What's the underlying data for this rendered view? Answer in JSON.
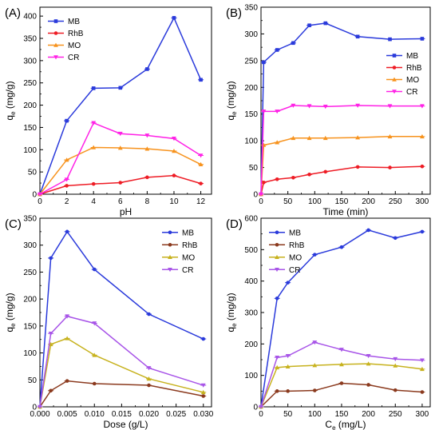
{
  "chart_data": [
    {
      "type": "line",
      "panel_label": "(A)",
      "xlabel": "pH",
      "ylabel_main": "q",
      "ylabel_sub": "e",
      "ylabel_unit": " (mg/g)",
      "xlim": [
        0,
        12.8
      ],
      "ylim": [
        0,
        420
      ],
      "xticks": [
        0,
        2,
        4,
        6,
        8,
        10,
        12
      ],
      "yticks": [
        0,
        50,
        100,
        150,
        200,
        250,
        300,
        350,
        400
      ],
      "xtick_labels": [
        "0",
        "2",
        "4",
        "6",
        "8",
        "10",
        "12"
      ],
      "ytick_labels": [
        "0",
        "50",
        "100",
        "150",
        "200",
        "250",
        "300",
        "350",
        "400"
      ],
      "legend_position": "top-left",
      "series": [
        {
          "name": "MB",
          "color": "#2a3adb",
          "marker": "square",
          "x": [
            0,
            2,
            4,
            6,
            8,
            10,
            12
          ],
          "y": [
            0,
            165,
            238,
            239,
            281,
            396,
            257
          ]
        },
        {
          "name": "RhB",
          "color": "#ee1c25",
          "marker": "circle",
          "x": [
            0,
            2,
            4,
            6,
            8,
            10,
            12
          ],
          "y": [
            0,
            19,
            23,
            26,
            38,
            42,
            24
          ]
        },
        {
          "name": "MO",
          "color": "#f7931e",
          "marker": "triangle",
          "x": [
            0,
            2,
            4,
            6,
            8,
            10,
            12
          ],
          "y": [
            0,
            77,
            105,
            104,
            102,
            97,
            67
          ]
        },
        {
          "name": "CR",
          "color": "#ff22e6",
          "marker": "triangle-down",
          "x": [
            0,
            2,
            4,
            6,
            8,
            10,
            12
          ],
          "y": [
            0,
            33,
            160,
            136,
            132,
            125,
            87
          ]
        }
      ]
    },
    {
      "type": "line",
      "panel_label": "(B)",
      "xlabel": "Time (min)",
      "ylabel_main": "q",
      "ylabel_sub": "e",
      "ylabel_unit": " (mg/g)",
      "xlim": [
        0,
        315
      ],
      "ylim": [
        0,
        350
      ],
      "xticks": [
        0,
        50,
        100,
        150,
        200,
        250,
        300
      ],
      "yticks": [
        0,
        50,
        100,
        150,
        200,
        250,
        300,
        350
      ],
      "xtick_labels": [
        "0",
        "50",
        "100",
        "150",
        "200",
        "250",
        "300"
      ],
      "ytick_labels": [
        "0",
        "50",
        "100",
        "150",
        "200",
        "250",
        "300",
        "350"
      ],
      "legend_position": "right",
      "series": [
        {
          "name": "MB",
          "color": "#2a3adb",
          "marker": "square",
          "x": [
            0,
            5,
            30,
            60,
            90,
            120,
            180,
            240,
            300
          ],
          "y": [
            0,
            247,
            270,
            283,
            316,
            320,
            295,
            290,
            291
          ]
        },
        {
          "name": "RhB",
          "color": "#ee1c25",
          "marker": "circle",
          "x": [
            0,
            5,
            30,
            60,
            90,
            120,
            180,
            240,
            300
          ],
          "y": [
            0,
            22,
            28,
            31,
            37,
            42,
            51,
            50,
            52
          ]
        },
        {
          "name": "MO",
          "color": "#f7931e",
          "marker": "triangle",
          "x": [
            0,
            5,
            30,
            60,
            90,
            120,
            180,
            240,
            300
          ],
          "y": [
            0,
            92,
            97,
            105,
            105,
            105,
            106,
            108,
            108
          ]
        },
        {
          "name": "CR",
          "color": "#ff22e6",
          "marker": "triangle-down",
          "x": [
            0,
            5,
            30,
            60,
            90,
            120,
            180,
            240,
            300
          ],
          "y": [
            0,
            155,
            155,
            166,
            165,
            164,
            166,
            165,
            165
          ]
        }
      ]
    },
    {
      "type": "line",
      "panel_label": "(C)",
      "xlabel": "Dose (g/L)",
      "ylabel_main": "q",
      "ylabel_sub": "e",
      "ylabel_unit": " (mg/g)",
      "xlim": [
        0,
        0.0315
      ],
      "ylim": [
        0,
        350
      ],
      "xticks": [
        0,
        0.005,
        0.01,
        0.015,
        0.02,
        0.025,
        0.03
      ],
      "yticks": [
        0,
        50,
        100,
        150,
        200,
        250,
        300,
        350
      ],
      "xtick_labels": [
        "0.000",
        "0.005",
        "0.010",
        "0.015",
        "0.020",
        "0.025",
        "0.030"
      ],
      "ytick_labels": [
        "0",
        "50",
        "100",
        "150",
        "200",
        "250",
        "300",
        "350"
      ],
      "legend_position": "top-right",
      "series": [
        {
          "name": "MB",
          "color": "#2a3adb",
          "marker": "circle",
          "x": [
            0,
            0.002,
            0.005,
            0.01,
            0.02,
            0.03
          ],
          "y": [
            0,
            276,
            325,
            255,
            172,
            126
          ]
        },
        {
          "name": "RhB",
          "color": "#8b3a1e",
          "marker": "circle",
          "x": [
            0,
            0.002,
            0.005,
            0.01,
            0.02,
            0.03
          ],
          "y": [
            0,
            30,
            48,
            43,
            40,
            20
          ]
        },
        {
          "name": "MO",
          "color": "#c7b21e",
          "marker": "triangle",
          "x": [
            0,
            0.002,
            0.005,
            0.01,
            0.02,
            0.03
          ],
          "y": [
            0,
            116,
            127,
            96,
            52,
            27
          ]
        },
        {
          "name": "CR",
          "color": "#a855e8",
          "marker": "triangle-down",
          "x": [
            0,
            0.002,
            0.005,
            0.01,
            0.02,
            0.03
          ],
          "y": [
            0,
            136,
            168,
            155,
            72,
            40
          ]
        }
      ]
    },
    {
      "type": "line",
      "panel_label": "(D)",
      "xlabel_main": "C",
      "xlabel_sub": "e",
      "xlabel_unit": " (mg/L)",
      "ylabel_main": "q",
      "ylabel_sub": "e",
      "ylabel_unit": " (mg/g)",
      "xlim": [
        0,
        315
      ],
      "ylim": [
        0,
        600
      ],
      "xticks": [
        0,
        50,
        100,
        150,
        200,
        250,
        300
      ],
      "yticks": [
        0,
        100,
        200,
        300,
        400,
        500,
        600
      ],
      "xtick_labels": [
        "0",
        "50",
        "100",
        "150",
        "200",
        "250",
        "300"
      ],
      "ytick_labels": [
        "0",
        "100",
        "200",
        "300",
        "400",
        "500",
        "600"
      ],
      "legend_position": "top-left",
      "series": [
        {
          "name": "MB",
          "color": "#2a3adb",
          "marker": "circle",
          "x": [
            0,
            30,
            50,
            100,
            150,
            200,
            250,
            300
          ],
          "y": [
            0,
            345,
            395,
            484,
            508,
            562,
            537,
            557
          ]
        },
        {
          "name": "RhB",
          "color": "#8b3a1e",
          "marker": "circle",
          "x": [
            0,
            30,
            50,
            100,
            150,
            200,
            250,
            300
          ],
          "y": [
            0,
            50,
            50,
            52,
            75,
            70,
            53,
            47
          ]
        },
        {
          "name": "MO",
          "color": "#c7b21e",
          "marker": "triangle",
          "x": [
            0,
            30,
            50,
            100,
            150,
            200,
            250,
            300
          ],
          "y": [
            0,
            125,
            128,
            132,
            135,
            137,
            131,
            120
          ]
        },
        {
          "name": "CR",
          "color": "#a855e8",
          "marker": "triangle-down",
          "x": [
            0,
            30,
            50,
            100,
            150,
            200,
            250,
            300
          ],
          "y": [
            0,
            157,
            162,
            205,
            182,
            162,
            152,
            148
          ]
        }
      ]
    }
  ]
}
